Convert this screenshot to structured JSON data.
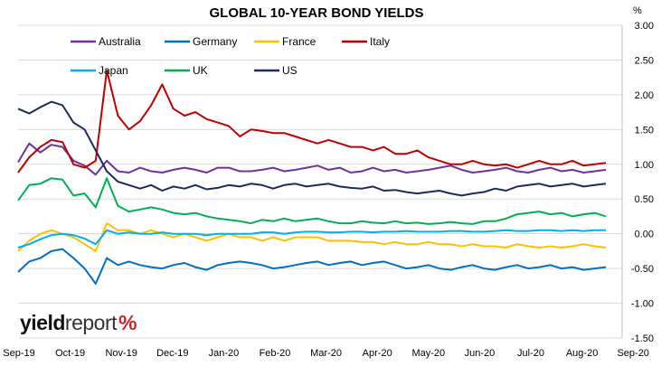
{
  "chart_data": {
    "type": "line",
    "title": "GLOBAL 10-YEAR BOND YIELDS",
    "unit": "%",
    "ylim": [
      -1.5,
      3.0
    ],
    "y_ticks": [
      "3.00",
      "2.50",
      "2.00",
      "1.50",
      "1.00",
      "0.50",
      "0.00",
      "-0.50",
      "-1.00",
      "-1.50"
    ],
    "x_ticks": [
      "Sep-19",
      "Oct-19",
      "Nov-19",
      "Dec-19",
      "Jan-20",
      "Feb-20",
      "Mar-20",
      "Apr-20",
      "May-20",
      "Jun-20",
      "Jul-20",
      "Aug-20",
      "Sep-20"
    ],
    "grid": true,
    "legend_position": "top-left",
    "series": [
      {
        "name": "Australia",
        "color": "#7030a0",
        "values": [
          1.03,
          1.3,
          1.17,
          1.28,
          1.25,
          1.05,
          0.98,
          0.85,
          1.05,
          0.9,
          0.88,
          0.95,
          0.9,
          0.88,
          0.92,
          0.95,
          0.92,
          0.88,
          0.95,
          0.95,
          0.9,
          0.9,
          0.92,
          0.95,
          0.9,
          0.92,
          0.95,
          0.98,
          0.92,
          0.95,
          0.88,
          0.9,
          0.95,
          0.9,
          0.92,
          0.88,
          0.9,
          0.92,
          0.95,
          0.98,
          0.92,
          0.88,
          0.9,
          0.92,
          0.95,
          0.9,
          0.88,
          0.92,
          0.95,
          0.9,
          0.92,
          0.88,
          0.9,
          0.92
        ]
      },
      {
        "name": "Germany",
        "color": "#0070c0",
        "values": [
          -0.55,
          -0.4,
          -0.35,
          -0.25,
          -0.22,
          -0.35,
          -0.5,
          -0.72,
          -0.35,
          -0.45,
          -0.4,
          -0.45,
          -0.48,
          -0.5,
          -0.45,
          -0.42,
          -0.48,
          -0.52,
          -0.45,
          -0.42,
          -0.4,
          -0.42,
          -0.45,
          -0.5,
          -0.48,
          -0.45,
          -0.42,
          -0.4,
          -0.45,
          -0.42,
          -0.4,
          -0.45,
          -0.42,
          -0.4,
          -0.45,
          -0.5,
          -0.48,
          -0.45,
          -0.5,
          -0.52,
          -0.48,
          -0.45,
          -0.5,
          -0.52,
          -0.48,
          -0.45,
          -0.5,
          -0.48,
          -0.45,
          -0.5,
          -0.48,
          -0.52,
          -0.5,
          -0.48
        ]
      },
      {
        "name": "France",
        "color": "#ffc000",
        "values": [
          -0.25,
          -0.1,
          0.0,
          0.05,
          0.0,
          -0.05,
          -0.15,
          -0.25,
          0.15,
          0.05,
          0.05,
          0.0,
          0.05,
          0.0,
          -0.05,
          0.0,
          -0.05,
          -0.1,
          -0.05,
          0.0,
          -0.05,
          -0.05,
          -0.1,
          -0.05,
          -0.1,
          -0.05,
          -0.05,
          -0.05,
          -0.1,
          -0.1,
          -0.1,
          -0.12,
          -0.12,
          -0.15,
          -0.12,
          -0.15,
          -0.15,
          -0.12,
          -0.15,
          -0.15,
          -0.18,
          -0.15,
          -0.18,
          -0.18,
          -0.2,
          -0.15,
          -0.18,
          -0.2,
          -0.18,
          -0.2,
          -0.18,
          -0.15,
          -0.18,
          -0.2
        ]
      },
      {
        "name": "Italy",
        "color": "#c00000",
        "values": [
          0.88,
          1.1,
          1.25,
          1.35,
          1.32,
          1.0,
          0.95,
          1.05,
          2.35,
          1.7,
          1.5,
          1.62,
          1.85,
          2.15,
          1.8,
          1.7,
          1.75,
          1.65,
          1.6,
          1.55,
          1.4,
          1.5,
          1.48,
          1.45,
          1.45,
          1.4,
          1.35,
          1.3,
          1.35,
          1.3,
          1.25,
          1.25,
          1.2,
          1.25,
          1.15,
          1.15,
          1.2,
          1.1,
          1.05,
          1.0,
          1.0,
          1.05,
          1.0,
          0.98,
          1.0,
          0.95,
          1.0,
          1.05,
          1.0,
          1.0,
          1.05,
          0.98,
          1.0,
          1.02
        ]
      },
      {
        "name": "Japan",
        "color": "#00b0f0",
        "values": [
          -0.2,
          -0.15,
          -0.08,
          -0.02,
          0.0,
          -0.02,
          -0.07,
          -0.15,
          0.05,
          0.0,
          0.02,
          0.0,
          0.0,
          0.02,
          0.0,
          0.0,
          0.0,
          -0.02,
          0.0,
          0.0,
          0.0,
          0.0,
          0.02,
          0.02,
          0.0,
          0.02,
          0.03,
          0.03,
          0.02,
          0.02,
          0.03,
          0.03,
          0.02,
          0.03,
          0.03,
          0.04,
          0.03,
          0.03,
          0.03,
          0.04,
          0.04,
          0.03,
          0.03,
          0.04,
          0.05,
          0.04,
          0.04,
          0.05,
          0.05,
          0.04,
          0.05,
          0.04,
          0.05,
          0.05
        ]
      },
      {
        "name": "UK",
        "color": "#00b050",
        "values": [
          0.48,
          0.7,
          0.72,
          0.8,
          0.78,
          0.55,
          0.58,
          0.38,
          0.8,
          0.4,
          0.32,
          0.35,
          0.38,
          0.35,
          0.3,
          0.28,
          0.3,
          0.25,
          0.22,
          0.2,
          0.18,
          0.15,
          0.2,
          0.18,
          0.22,
          0.18,
          0.2,
          0.22,
          0.18,
          0.15,
          0.15,
          0.18,
          0.16,
          0.15,
          0.18,
          0.15,
          0.16,
          0.14,
          0.15,
          0.17,
          0.15,
          0.14,
          0.18,
          0.18,
          0.22,
          0.28,
          0.3,
          0.32,
          0.28,
          0.3,
          0.25,
          0.28,
          0.3,
          0.25
        ]
      },
      {
        "name": "US",
        "color": "#1f2a5c",
        "values": [
          1.8,
          1.73,
          1.82,
          1.9,
          1.85,
          1.6,
          1.5,
          1.2,
          0.9,
          0.75,
          0.7,
          0.65,
          0.7,
          0.62,
          0.68,
          0.65,
          0.7,
          0.64,
          0.66,
          0.7,
          0.68,
          0.72,
          0.7,
          0.65,
          0.7,
          0.72,
          0.68,
          0.7,
          0.72,
          0.68,
          0.66,
          0.65,
          0.68,
          0.62,
          0.63,
          0.6,
          0.58,
          0.6,
          0.62,
          0.58,
          0.55,
          0.58,
          0.6,
          0.65,
          0.62,
          0.68,
          0.7,
          0.72,
          0.68,
          0.7,
          0.72,
          0.68,
          0.7,
          0.72
        ]
      }
    ]
  },
  "branding": {
    "word1": "yield",
    "word2": "report",
    "symbol": "%"
  }
}
